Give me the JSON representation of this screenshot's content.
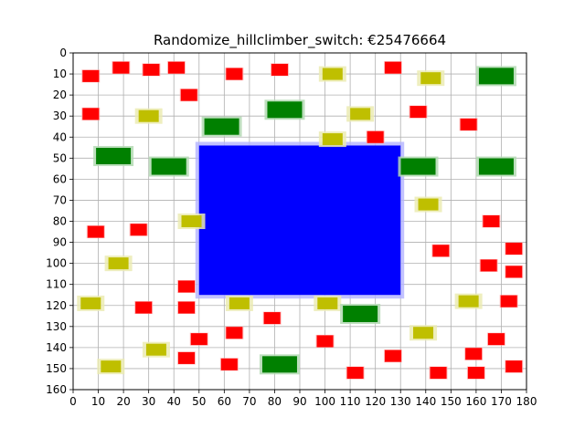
{
  "title": "Randomize_hillclimber_switch: €25476664",
  "chart_data": {
    "type": "scatter",
    "title": "Randomize_hillclimber_switch: €25476664",
    "xlim": [
      0,
      180
    ],
    "ylim": [
      160,
      0
    ],
    "y_inverted": true,
    "grid": true,
    "x_ticks": [
      "0",
      "10",
      "20",
      "30",
      "40",
      "50",
      "60",
      "70",
      "80",
      "90",
      "100",
      "110",
      "120",
      "130",
      "140",
      "150",
      "160",
      "170",
      "180"
    ],
    "y_ticks": [
      "0",
      "10",
      "20",
      "30",
      "40",
      "50",
      "60",
      "70",
      "80",
      "90",
      "100",
      "110",
      "120",
      "130",
      "140",
      "150",
      "160"
    ],
    "colors": {
      "red": "#ff0000",
      "red_halo": "#ffb3b3",
      "yellow": "#bfbf00",
      "yellow_halo": "#ebebb3",
      "green": "#008000",
      "green_halo": "#b3d9b3",
      "blue": "#0000ff",
      "blue_halo": "#b3b3ff",
      "grid": "#b0b0b0",
      "axis": "#000000"
    },
    "blue_block": {
      "x0": 50,
      "x1": 130,
      "y0": 44,
      "y1": 115
    },
    "squares": [
      {
        "c": "red",
        "x": 7,
        "y": 11
      },
      {
        "c": "red",
        "x": 19,
        "y": 7
      },
      {
        "c": "red",
        "x": 31,
        "y": 8
      },
      {
        "c": "red",
        "x": 46,
        "y": 20
      },
      {
        "c": "red",
        "x": 41,
        "y": 7
      },
      {
        "c": "red",
        "x": 64,
        "y": 10
      },
      {
        "c": "red",
        "x": 82,
        "y": 8
      },
      {
        "c": "red",
        "x": 127,
        "y": 7
      },
      {
        "c": "red",
        "x": 7,
        "y": 29
      },
      {
        "c": "red",
        "x": 120,
        "y": 40
      },
      {
        "c": "red",
        "x": 137,
        "y": 28
      },
      {
        "c": "red",
        "x": 157,
        "y": 34
      },
      {
        "c": "red",
        "x": 9,
        "y": 85
      },
      {
        "c": "red",
        "x": 26,
        "y": 84
      },
      {
        "c": "red",
        "x": 166,
        "y": 80
      },
      {
        "c": "red",
        "x": 146,
        "y": 94
      },
      {
        "c": "red",
        "x": 175,
        "y": 93
      },
      {
        "c": "red",
        "x": 165,
        "y": 101
      },
      {
        "c": "red",
        "x": 175,
        "y": 104
      },
      {
        "c": "red",
        "x": 45,
        "y": 111
      },
      {
        "c": "red",
        "x": 173,
        "y": 118
      },
      {
        "c": "red",
        "x": 28,
        "y": 121
      },
      {
        "c": "red",
        "x": 45,
        "y": 121
      },
      {
        "c": "red",
        "x": 79,
        "y": 126
      },
      {
        "c": "red",
        "x": 64,
        "y": 133
      },
      {
        "c": "red",
        "x": 50,
        "y": 136
      },
      {
        "c": "red",
        "x": 100,
        "y": 137
      },
      {
        "c": "red",
        "x": 168,
        "y": 136
      },
      {
        "c": "red",
        "x": 45,
        "y": 145
      },
      {
        "c": "red",
        "x": 62,
        "y": 148
      },
      {
        "c": "red",
        "x": 127,
        "y": 144
      },
      {
        "c": "red",
        "x": 159,
        "y": 143
      },
      {
        "c": "red",
        "x": 112,
        "y": 152
      },
      {
        "c": "red",
        "x": 145,
        "y": 152
      },
      {
        "c": "red",
        "x": 160,
        "y": 152
      },
      {
        "c": "red",
        "x": 175,
        "y": 149
      },
      {
        "c": "yellow",
        "x": 103,
        "y": 10
      },
      {
        "c": "yellow",
        "x": 142,
        "y": 12
      },
      {
        "c": "yellow",
        "x": 30,
        "y": 30
      },
      {
        "c": "yellow",
        "x": 114,
        "y": 29
      },
      {
        "c": "yellow",
        "x": 103,
        "y": 41
      },
      {
        "c": "yellow",
        "x": 141,
        "y": 72
      },
      {
        "c": "yellow",
        "x": 47,
        "y": 80
      },
      {
        "c": "yellow",
        "x": 18,
        "y": 100
      },
      {
        "c": "yellow",
        "x": 7,
        "y": 119
      },
      {
        "c": "yellow",
        "x": 66,
        "y": 119
      },
      {
        "c": "yellow",
        "x": 101,
        "y": 119
      },
      {
        "c": "yellow",
        "x": 157,
        "y": 118
      },
      {
        "c": "yellow",
        "x": 139,
        "y": 133
      },
      {
        "c": "yellow",
        "x": 33,
        "y": 141
      },
      {
        "c": "yellow",
        "x": 15,
        "y": 149
      },
      {
        "c": "green",
        "x": 168,
        "y": 11
      },
      {
        "c": "green",
        "x": 84,
        "y": 27
      },
      {
        "c": "green",
        "x": 59,
        "y": 35
      },
      {
        "c": "green",
        "x": 16,
        "y": 49
      },
      {
        "c": "green",
        "x": 38,
        "y": 54
      },
      {
        "c": "green",
        "x": 137,
        "y": 54
      },
      {
        "c": "green",
        "x": 168,
        "y": 54
      },
      {
        "c": "green",
        "x": 114,
        "y": 124
      },
      {
        "c": "green",
        "x": 82,
        "y": 148
      }
    ]
  }
}
